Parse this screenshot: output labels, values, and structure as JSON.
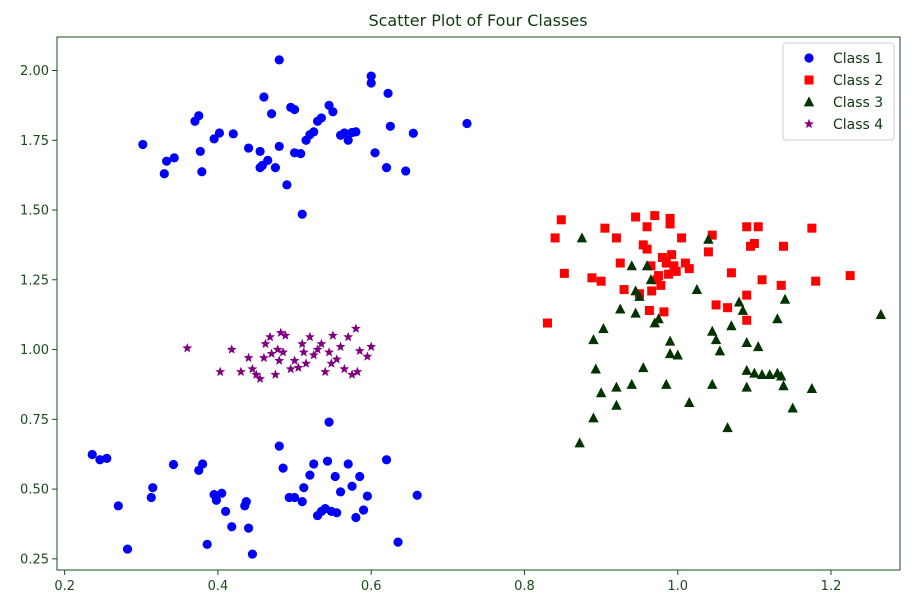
{
  "chart_data": {
    "type": "scatter",
    "title": "Scatter Plot of Four Classes",
    "xlabel": "",
    "ylabel": "",
    "xlim": [
      0.19,
      1.29
    ],
    "ylim": [
      0.21,
      2.12
    ],
    "xticks": [
      0.2,
      0.4,
      0.6,
      0.8,
      1.0,
      1.2
    ],
    "xtick_labels": [
      "0.2",
      "0.4",
      "0.6",
      "0.8",
      "1.0",
      "1.2"
    ],
    "yticks": [
      0.25,
      0.5,
      0.75,
      1.0,
      1.25,
      1.5,
      1.75,
      2.0
    ],
    "ytick_labels": [
      "0.25",
      "0.50",
      "0.75",
      "1.00",
      "1.25",
      "1.50",
      "1.75",
      "2.00"
    ],
    "grid": false,
    "legend_position": "top-right",
    "colors": {
      "axis": "#1a4d1a",
      "title": "#0f3a0f",
      "class1": "#0000ff",
      "class2": "#ff0000",
      "class3": "#003300",
      "class4": "#800080"
    },
    "series": [
      {
        "name": "Class 1",
        "marker": "circle",
        "color": "#0000ff",
        "points": [
          [
            0.302,
            1.735
          ],
          [
            0.33,
            1.63
          ],
          [
            0.333,
            1.675
          ],
          [
            0.343,
            1.687
          ],
          [
            0.37,
            1.818
          ],
          [
            0.375,
            1.838
          ],
          [
            0.377,
            1.71
          ],
          [
            0.379,
            1.637
          ],
          [
            0.395,
            1.755
          ],
          [
            0.402,
            1.776
          ],
          [
            0.42,
            1.773
          ],
          [
            0.44,
            1.722
          ],
          [
            0.455,
            1.71
          ],
          [
            0.455,
            1.652
          ],
          [
            0.458,
            1.66
          ],
          [
            0.46,
            1.905
          ],
          [
            0.465,
            1.678
          ],
          [
            0.47,
            1.845
          ],
          [
            0.475,
            1.652
          ],
          [
            0.48,
            2.038
          ],
          [
            0.48,
            1.728
          ],
          [
            0.49,
            1.59
          ],
          [
            0.495,
            1.868
          ],
          [
            0.5,
            1.705
          ],
          [
            0.5,
            1.86
          ],
          [
            0.508,
            1.702
          ],
          [
            0.515,
            1.75
          ],
          [
            0.51,
            1.485
          ],
          [
            0.52,
            1.77
          ],
          [
            0.525,
            1.78
          ],
          [
            0.53,
            1.818
          ],
          [
            0.535,
            1.83
          ],
          [
            0.545,
            1.875
          ],
          [
            0.55,
            1.852
          ],
          [
            0.56,
            1.768
          ],
          [
            0.565,
            1.776
          ],
          [
            0.57,
            1.75
          ],
          [
            0.575,
            1.778
          ],
          [
            0.58,
            1.78
          ],
          [
            0.6,
            1.98
          ],
          [
            0.6,
            1.955
          ],
          [
            0.605,
            1.705
          ],
          [
            0.62,
            1.652
          ],
          [
            0.622,
            1.918
          ],
          [
            0.625,
            1.8
          ],
          [
            0.645,
            1.64
          ],
          [
            0.655,
            1.775
          ],
          [
            0.725,
            1.81
          ],
          [
            0.236,
            0.624
          ],
          [
            0.246,
            0.605
          ],
          [
            0.255,
            0.61
          ],
          [
            0.27,
            0.44
          ],
          [
            0.282,
            0.285
          ],
          [
            0.313,
            0.47
          ],
          [
            0.315,
            0.505
          ],
          [
            0.342,
            0.588
          ],
          [
            0.375,
            0.567
          ],
          [
            0.38,
            0.59
          ],
          [
            0.386,
            0.302
          ],
          [
            0.395,
            0.48
          ],
          [
            0.398,
            0.46
          ],
          [
            0.405,
            0.485
          ],
          [
            0.41,
            0.42
          ],
          [
            0.418,
            0.365
          ],
          [
            0.435,
            0.44
          ],
          [
            0.437,
            0.455
          ],
          [
            0.44,
            0.36
          ],
          [
            0.445,
            0.267
          ],
          [
            0.48,
            0.654
          ],
          [
            0.485,
            0.575
          ],
          [
            0.493,
            0.47
          ],
          [
            0.5,
            0.47
          ],
          [
            0.51,
            0.455
          ],
          [
            0.512,
            0.505
          ],
          [
            0.52,
            0.55
          ],
          [
            0.525,
            0.59
          ],
          [
            0.53,
            0.405
          ],
          [
            0.535,
            0.42
          ],
          [
            0.54,
            0.43
          ],
          [
            0.543,
            0.6
          ],
          [
            0.545,
            0.74
          ],
          [
            0.548,
            0.42
          ],
          [
            0.553,
            0.545
          ],
          [
            0.555,
            0.415
          ],
          [
            0.56,
            0.49
          ],
          [
            0.57,
            0.59
          ],
          [
            0.575,
            0.51
          ],
          [
            0.58,
            0.398
          ],
          [
            0.585,
            0.545
          ],
          [
            0.59,
            0.425
          ],
          [
            0.595,
            0.475
          ],
          [
            0.62,
            0.605
          ],
          [
            0.635,
            0.31
          ],
          [
            0.66,
            0.478
          ]
        ]
      },
      {
        "name": "Class 2",
        "marker": "square",
        "color": "#ff0000",
        "points": [
          [
            0.83,
            1.095
          ],
          [
            0.84,
            1.4
          ],
          [
            0.848,
            1.465
          ],
          [
            0.852,
            1.273
          ],
          [
            0.888,
            1.257
          ],
          [
            0.9,
            1.245
          ],
          [
            0.905,
            1.435
          ],
          [
            0.92,
            1.4
          ],
          [
            0.925,
            1.31
          ],
          [
            0.93,
            1.215
          ],
          [
            0.945,
            1.475
          ],
          [
            0.95,
            1.2
          ],
          [
            0.955,
            1.375
          ],
          [
            0.96,
            1.36
          ],
          [
            0.96,
            1.44
          ],
          [
            0.963,
            1.14
          ],
          [
            0.965,
            1.3
          ],
          [
            0.966,
            1.21
          ],
          [
            0.97,
            1.48
          ],
          [
            0.973,
            1.25
          ],
          [
            0.975,
            1.265
          ],
          [
            0.978,
            1.23
          ],
          [
            0.98,
            1.33
          ],
          [
            0.982,
            1.135
          ],
          [
            0.985,
            1.31
          ],
          [
            0.988,
            1.27
          ],
          [
            0.99,
            1.45
          ],
          [
            0.99,
            1.47
          ],
          [
            0.992,
            1.34
          ],
          [
            0.995,
            1.3
          ],
          [
            0.998,
            1.28
          ],
          [
            1.005,
            1.4
          ],
          [
            1.01,
            1.31
          ],
          [
            1.015,
            1.29
          ],
          [
            1.04,
            1.35
          ],
          [
            1.045,
            1.41
          ],
          [
            1.05,
            1.16
          ],
          [
            1.065,
            1.15
          ],
          [
            1.07,
            1.275
          ],
          [
            1.09,
            1.44
          ],
          [
            1.09,
            1.195
          ],
          [
            1.09,
            1.105
          ],
          [
            1.095,
            1.37
          ],
          [
            1.1,
            1.38
          ],
          [
            1.105,
            1.44
          ],
          [
            1.11,
            1.25
          ],
          [
            1.135,
            1.23
          ],
          [
            1.138,
            1.37
          ],
          [
            1.175,
            1.435
          ],
          [
            1.18,
            1.245
          ],
          [
            1.225,
            1.265
          ]
        ]
      },
      {
        "name": "Class 3",
        "marker": "triangle",
        "color": "#003300",
        "points": [
          [
            0.872,
            0.665
          ],
          [
            0.875,
            1.4
          ],
          [
            0.89,
            0.755
          ],
          [
            0.89,
            1.035
          ],
          [
            0.893,
            0.93
          ],
          [
            0.9,
            0.845
          ],
          [
            0.903,
            1.075
          ],
          [
            0.92,
            0.865
          ],
          [
            0.92,
            0.8
          ],
          [
            0.925,
            1.145
          ],
          [
            0.94,
            0.875
          ],
          [
            0.94,
            1.3
          ],
          [
            0.945,
            1.13
          ],
          [
            0.945,
            1.21
          ],
          [
            0.95,
            1.19
          ],
          [
            0.955,
            0.935
          ],
          [
            0.96,
            1.3
          ],
          [
            0.965,
            1.25
          ],
          [
            0.97,
            1.095
          ],
          [
            0.975,
            1.11
          ],
          [
            0.985,
            0.875
          ],
          [
            0.99,
            1.03
          ],
          [
            0.99,
            0.985
          ],
          [
            1.0,
            0.98
          ],
          [
            1.015,
            0.81
          ],
          [
            1.025,
            1.215
          ],
          [
            1.04,
            1.395
          ],
          [
            1.045,
            1.065
          ],
          [
            1.045,
            0.875
          ],
          [
            1.05,
            1.035
          ],
          [
            1.055,
            0.995
          ],
          [
            1.065,
            0.72
          ],
          [
            1.07,
            1.085
          ],
          [
            1.08,
            1.17
          ],
          [
            1.085,
            1.14
          ],
          [
            1.09,
            1.025
          ],
          [
            1.09,
            0.925
          ],
          [
            1.09,
            0.865
          ],
          [
            1.1,
            0.915
          ],
          [
            1.105,
            1.01
          ],
          [
            1.11,
            0.91
          ],
          [
            1.12,
            0.91
          ],
          [
            1.13,
            0.915
          ],
          [
            1.13,
            1.11
          ],
          [
            1.135,
            0.905
          ],
          [
            1.138,
            0.87
          ],
          [
            1.14,
            1.18
          ],
          [
            1.15,
            0.79
          ],
          [
            1.175,
            0.86
          ],
          [
            1.265,
            1.125
          ]
        ]
      },
      {
        "name": "Class 4",
        "marker": "star",
        "color": "#800080",
        "points": [
          [
            0.36,
            1.005
          ],
          [
            0.403,
            0.92
          ],
          [
            0.418,
            1.0
          ],
          [
            0.43,
            0.92
          ],
          [
            0.44,
            0.97
          ],
          [
            0.445,
            0.93
          ],
          [
            0.45,
            0.91
          ],
          [
            0.455,
            0.895
          ],
          [
            0.46,
            0.97
          ],
          [
            0.462,
            1.02
          ],
          [
            0.468,
            1.045
          ],
          [
            0.47,
            0.985
          ],
          [
            0.475,
            0.91
          ],
          [
            0.478,
            1.0
          ],
          [
            0.48,
            0.96
          ],
          [
            0.482,
            1.06
          ],
          [
            0.485,
            0.99
          ],
          [
            0.488,
            1.05
          ],
          [
            0.495,
            0.93
          ],
          [
            0.5,
            0.96
          ],
          [
            0.505,
            0.935
          ],
          [
            0.51,
            1.02
          ],
          [
            0.512,
            0.99
          ],
          [
            0.515,
            0.95
          ],
          [
            0.52,
            1.045
          ],
          [
            0.525,
            0.98
          ],
          [
            0.53,
            1.0
          ],
          [
            0.535,
            1.02
          ],
          [
            0.54,
            0.92
          ],
          [
            0.545,
            0.99
          ],
          [
            0.548,
            0.95
          ],
          [
            0.55,
            1.05
          ],
          [
            0.555,
            0.965
          ],
          [
            0.56,
            1.01
          ],
          [
            0.565,
            0.93
          ],
          [
            0.57,
            1.045
          ],
          [
            0.575,
            0.91
          ],
          [
            0.58,
            1.075
          ],
          [
            0.582,
            0.92
          ],
          [
            0.585,
            0.995
          ],
          [
            0.595,
            0.975
          ],
          [
            0.6,
            1.01
          ]
        ]
      }
    ]
  }
}
